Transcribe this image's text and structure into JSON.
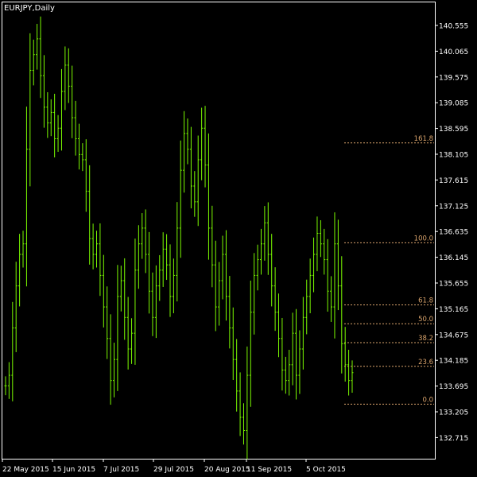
{
  "chart_data": {
    "type": "line",
    "title": "EURJPY,Daily",
    "y_ticks": [
      "140.555",
      "140.065",
      "139.575",
      "139.085",
      "138.595",
      "138.105",
      "137.615",
      "137.125",
      "136.635",
      "136.145",
      "135.655",
      "135.165",
      "134.675",
      "134.185",
      "133.695",
      "133.205",
      "132.715"
    ],
    "x_ticks": [
      "22 May 2015",
      "15 Jun 2015",
      "7 Jul 2015",
      "29 Jul 2015",
      "20 Aug 2015",
      "11 Sep 2015",
      "5 Oct 2015"
    ],
    "ylim": [
      132.4,
      140.9
    ],
    "grid": false,
    "line_color": "#7CFC00",
    "fib_color": "#d9a36b",
    "series": [
      {
        "values": [
          133.7,
          133.9,
          134.8,
          135.6,
          136.2,
          136.4,
          138.2,
          139.7,
          140.0,
          140.3,
          139.6,
          139.0,
          138.7,
          138.9,
          138.4,
          138.6,
          139.3,
          139.8,
          139.4,
          138.8,
          138.4,
          138.1,
          138.0,
          137.4,
          136.5,
          136.2,
          136.4,
          135.8,
          135.2,
          134.6,
          133.8,
          134.2,
          135.4,
          135.7,
          135.0,
          134.4,
          134.7,
          135.9,
          136.4,
          136.7,
          136.2,
          135.5,
          135.0,
          135.6,
          135.9,
          136.3,
          136.0,
          135.4,
          135.8,
          136.7,
          137.8,
          138.5,
          138.2,
          137.5,
          137.2,
          138.0,
          138.6,
          137.9,
          136.7,
          136.0,
          135.2,
          135.7,
          136.2,
          135.4,
          134.8,
          134.2,
          133.6,
          133.1,
          132.85,
          133.9,
          135.1,
          135.8,
          136.1,
          136.4,
          136.8,
          136.2,
          135.6,
          135.1,
          134.6,
          134.0,
          133.8,
          134.1,
          134.7,
          133.9,
          134.4,
          135.0,
          135.4,
          135.8,
          136.2,
          136.6,
          136.4,
          136.1,
          135.5,
          135.2,
          136.4,
          135.6,
          134.5,
          134.1,
          133.8,
          133.95
        ]
      }
    ],
    "fibonacci": [
      {
        "label": "161.8",
        "value": 138.32
      },
      {
        "label": "100.0",
        "value": 136.42
      },
      {
        "label": "61.8",
        "value": 135.24
      },
      {
        "label": "50.0",
        "value": 134.88
      },
      {
        "label": "38.2",
        "value": 134.52
      },
      {
        "label": "23.6",
        "value": 134.07
      },
      {
        "label": "0.0",
        "value": 133.35
      }
    ]
  }
}
